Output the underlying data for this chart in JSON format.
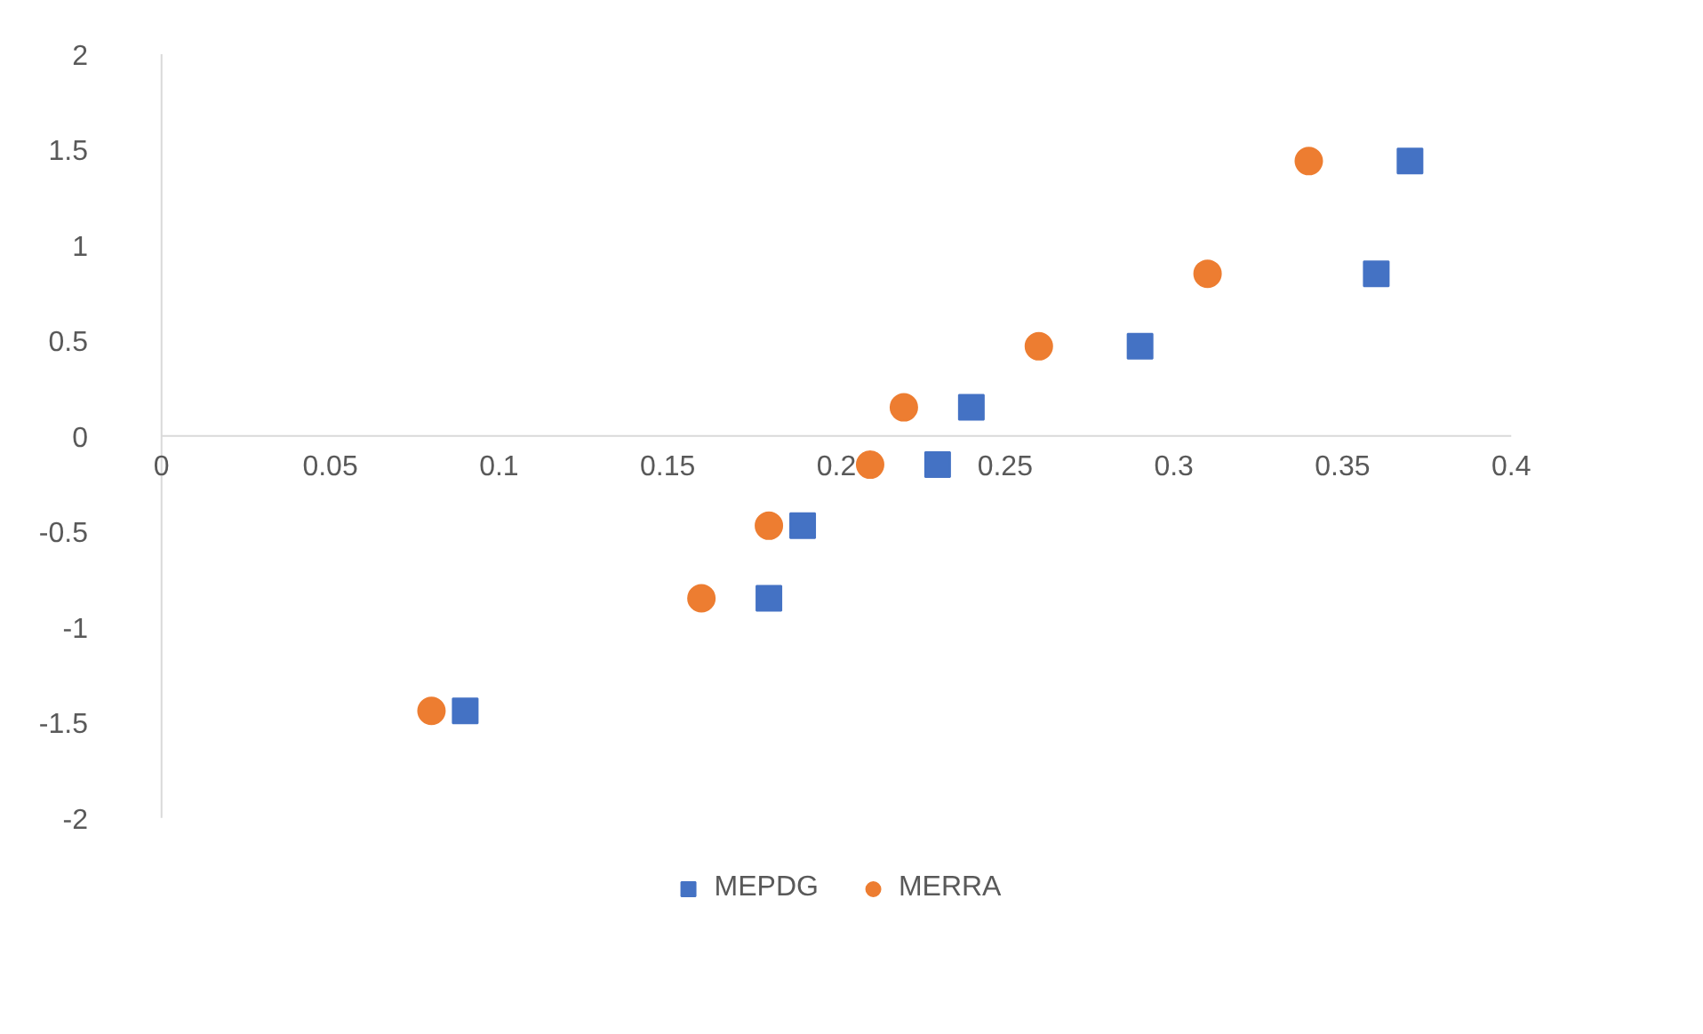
{
  "chart_data": {
    "type": "scatter",
    "xlim": [
      0,
      0.4
    ],
    "ylim": [
      -2,
      2
    ],
    "xticks": [
      0,
      0.05,
      0.1,
      0.15,
      0.2,
      0.25,
      0.3,
      0.35,
      0.4
    ],
    "yticks": [
      -2,
      -1.5,
      -1,
      -0.5,
      0,
      0.5,
      1,
      1.5,
      2
    ],
    "grid": false,
    "legend": "bottom",
    "series": [
      {
        "name": "MEPDG",
        "color": "#4472c4",
        "marker": "square",
        "x": [
          0.09,
          0.18,
          0.19,
          0.23,
          0.24,
          0.29,
          0.36,
          0.37
        ],
        "values": [
          -1.44,
          -0.85,
          -0.47,
          -0.15,
          0.15,
          0.47,
          0.85,
          1.44
        ]
      },
      {
        "name": "MERRA",
        "color": "#ed7d31",
        "marker": "circle",
        "x": [
          0.08,
          0.16,
          0.18,
          0.21,
          0.22,
          0.26,
          0.31,
          0.34
        ],
        "values": [
          -1.44,
          -0.85,
          -0.47,
          -0.15,
          0.15,
          0.47,
          0.85,
          1.44
        ]
      }
    ]
  }
}
